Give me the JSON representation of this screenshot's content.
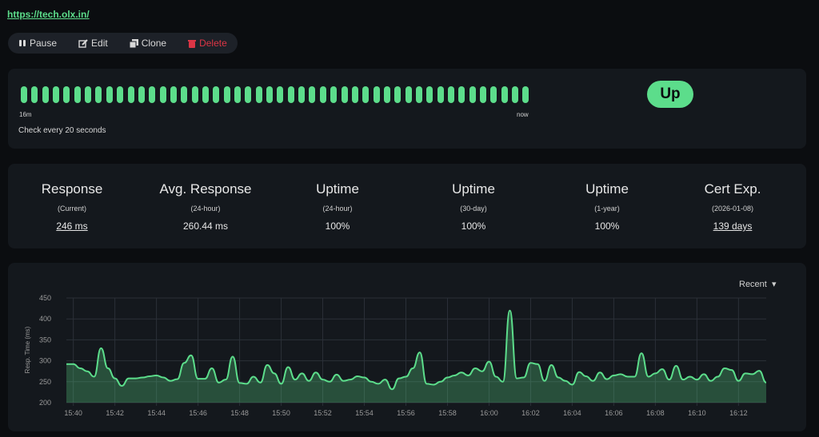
{
  "header": {
    "url": "https://tech.olx.in/"
  },
  "toolbar": [
    "Pause",
    "Edit",
    "Clone",
    "Delete"
  ],
  "heartbeat": {
    "start_label": "16m",
    "end_label": "now",
    "interval": "Check every 20 seconds",
    "status": "Up"
  },
  "stats": [
    {
      "title": "Response",
      "subtitle": "(Current)",
      "value": "246 ms",
      "link": true
    },
    {
      "title": "Avg. Response",
      "subtitle": "(24-hour)",
      "value": "260.44 ms",
      "link": false
    },
    {
      "title": "Uptime",
      "subtitle": "(24-hour)",
      "value": "100%",
      "link": false
    },
    {
      "title": "Uptime",
      "subtitle": "(30-day)",
      "value": "100%",
      "link": false
    },
    {
      "title": "Uptime",
      "subtitle": "(1-year)",
      "value": "100%",
      "link": false
    },
    {
      "title": "Cert Exp.",
      "subtitle": "(2026-01-08)",
      "value": "139 days",
      "link": true
    }
  ],
  "chart_data": {
    "type": "line",
    "dropdown": "Recent",
    "y_label": "Resp. Time (ms)",
    "color": "#5cdd8b",
    "grid": true,
    "ylim": [
      200,
      450
    ],
    "yticks": [
      200,
      250,
      300,
      350,
      400,
      450
    ],
    "categories": [
      null,
      "15:40",
      null,
      null,
      null,
      null,
      null,
      "15:42",
      null,
      null,
      null,
      null,
      null,
      "15:44",
      null,
      null,
      null,
      null,
      null,
      "15:46",
      null,
      null,
      null,
      null,
      null,
      "15:48",
      null,
      null,
      null,
      null,
      null,
      "15:50",
      null,
      null,
      null,
      null,
      null,
      "15:52",
      null,
      null,
      null,
      null,
      null,
      "15:54",
      null,
      null,
      null,
      null,
      null,
      "15:56",
      null,
      null,
      null,
      null,
      null,
      "15:58",
      null,
      null,
      null,
      null,
      null,
      "16:00",
      null,
      null,
      null,
      null,
      null,
      "16:02",
      null,
      null,
      null,
      null,
      null,
      "16:04",
      null,
      null,
      null,
      null,
      null,
      "16:06",
      null,
      null,
      null,
      null,
      null,
      "16:08",
      null,
      null,
      null,
      null,
      null,
      "16:10",
      null,
      null,
      null,
      null,
      null,
      "16:12",
      null,
      null,
      null,
      null
    ],
    "values": [
      292,
      292,
      282,
      275,
      262,
      330,
      282,
      258,
      240,
      258,
      258,
      260,
      263,
      265,
      260,
      252,
      256,
      295,
      313,
      257,
      257,
      282,
      248,
      255,
      310,
      247,
      245,
      262,
      248,
      290,
      270,
      245,
      285,
      255,
      270,
      252,
      272,
      255,
      250,
      267,
      252,
      255,
      263,
      260,
      250,
      245,
      255,
      232,
      258,
      262,
      282,
      320,
      245,
      243,
      250,
      260,
      265,
      272,
      265,
      282,
      275,
      298,
      262,
      250,
      420,
      258,
      260,
      295,
      292,
      252,
      290,
      260,
      252,
      243,
      273,
      263,
      252,
      272,
      256,
      265,
      268,
      262,
      262,
      318,
      262,
      270,
      280,
      255,
      288,
      255,
      262,
      255,
      268,
      252,
      262,
      282,
      278,
      252,
      270,
      268,
      276,
      248
    ]
  }
}
